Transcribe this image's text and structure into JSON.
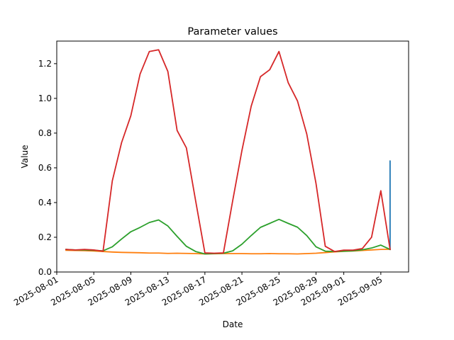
{
  "chart_data": {
    "type": "line",
    "title": "Parameter values",
    "xlabel": "Date",
    "ylabel": "Value",
    "xlim": [
      "2025-08-01",
      "2025-09-08"
    ],
    "ylim": [
      0,
      1.33
    ],
    "x_ticks": [
      "2025-08-01",
      "2025-08-05",
      "2025-08-09",
      "2025-08-13",
      "2025-08-17",
      "2025-08-21",
      "2025-08-25",
      "2025-08-29",
      "2025-09-01",
      "2025-09-05"
    ],
    "y_ticks": [
      "0.0",
      "0.2",
      "0.4",
      "0.6",
      "0.8",
      "1.0",
      "1.2"
    ],
    "y_tick_values": [
      0.0,
      0.2,
      0.4,
      0.6,
      0.8,
      1.0,
      1.2
    ],
    "grid": false,
    "series": [
      {
        "color": "#1f77b4",
        "x": [
          "2025-09-06",
          "2025-09-06",
          "2025-09-06"
        ],
        "y": [
          0.13,
          0.64,
          0.13
        ]
      },
      {
        "color": "#ff7f0e",
        "x": [
          "2025-08-02",
          "2025-08-03",
          "2025-08-04",
          "2025-08-05",
          "2025-08-06",
          "2025-08-07",
          "2025-08-08",
          "2025-08-09",
          "2025-08-10",
          "2025-08-11",
          "2025-08-12",
          "2025-08-13",
          "2025-08-14",
          "2025-08-15",
          "2025-08-16",
          "2025-08-17",
          "2025-08-18",
          "2025-08-19",
          "2025-08-20",
          "2025-08-21",
          "2025-08-22",
          "2025-08-23",
          "2025-08-24",
          "2025-08-25",
          "2025-08-26",
          "2025-08-27",
          "2025-08-28",
          "2025-08-29",
          "2025-08-30",
          "2025-08-31",
          "2025-09-01",
          "2025-09-02",
          "2025-09-03",
          "2025-09-04",
          "2025-09-05",
          "2025-09-06"
        ],
        "y": [
          0.125,
          0.124,
          0.123,
          0.121,
          0.118,
          0.115,
          0.113,
          0.112,
          0.111,
          0.109,
          0.109,
          0.107,
          0.108,
          0.107,
          0.106,
          0.104,
          0.105,
          0.106,
          0.106,
          0.106,
          0.105,
          0.105,
          0.106,
          0.105,
          0.105,
          0.104,
          0.106,
          0.108,
          0.112,
          0.116,
          0.119,
          0.121,
          0.124,
          0.127,
          0.13,
          0.131
        ]
      },
      {
        "color": "#2ca02c",
        "x": [
          "2025-08-02",
          "2025-08-03",
          "2025-08-04",
          "2025-08-05",
          "2025-08-06",
          "2025-08-07",
          "2025-08-08",
          "2025-08-09",
          "2025-08-10",
          "2025-08-11",
          "2025-08-12",
          "2025-08-13",
          "2025-08-14",
          "2025-08-15",
          "2025-08-16",
          "2025-08-17",
          "2025-08-18",
          "2025-08-19",
          "2025-08-20",
          "2025-08-21",
          "2025-08-22",
          "2025-08-23",
          "2025-08-24",
          "2025-08-25",
          "2025-08-26",
          "2025-08-27",
          "2025-08-28",
          "2025-08-29",
          "2025-08-30",
          "2025-08-31",
          "2025-09-01",
          "2025-09-02",
          "2025-09-03",
          "2025-09-04",
          "2025-09-05",
          "2025-09-06"
        ],
        "y": [
          0.13,
          0.127,
          0.127,
          0.125,
          0.122,
          0.145,
          0.19,
          0.232,
          0.257,
          0.285,
          0.3,
          0.265,
          0.205,
          0.148,
          0.118,
          0.104,
          0.106,
          0.108,
          0.122,
          0.16,
          0.21,
          0.257,
          0.28,
          0.303,
          0.28,
          0.258,
          0.21,
          0.145,
          0.12,
          0.118,
          0.12,
          0.122,
          0.128,
          0.138,
          0.155,
          0.13
        ]
      },
      {
        "color": "#d62728",
        "x": [
          "2025-08-02",
          "2025-08-03",
          "2025-08-04",
          "2025-08-05",
          "2025-08-06",
          "2025-08-07",
          "2025-08-08",
          "2025-08-09",
          "2025-08-10",
          "2025-08-11",
          "2025-08-12",
          "2025-08-13",
          "2025-08-14",
          "2025-08-15",
          "2025-08-16",
          "2025-08-17",
          "2025-08-18",
          "2025-08-19",
          "2025-08-20",
          "2025-08-21",
          "2025-08-22",
          "2025-08-23",
          "2025-08-24",
          "2025-08-25",
          "2025-08-26",
          "2025-08-27",
          "2025-08-28",
          "2025-08-29",
          "2025-08-30",
          "2025-08-31",
          "2025-09-01",
          "2025-09-02",
          "2025-09-03",
          "2025-09-04",
          "2025-09-05",
          "2025-09-06"
        ],
        "y": [
          0.13,
          0.127,
          0.13,
          0.127,
          0.12,
          0.525,
          0.745,
          0.9,
          1.14,
          1.27,
          1.28,
          1.155,
          0.815,
          0.715,
          0.41,
          0.11,
          0.108,
          0.11,
          0.41,
          0.7,
          0.955,
          1.125,
          1.165,
          1.27,
          1.09,
          0.985,
          0.795,
          0.51,
          0.148,
          0.118,
          0.126,
          0.126,
          0.135,
          0.2,
          0.468,
          0.13
        ]
      }
    ]
  }
}
